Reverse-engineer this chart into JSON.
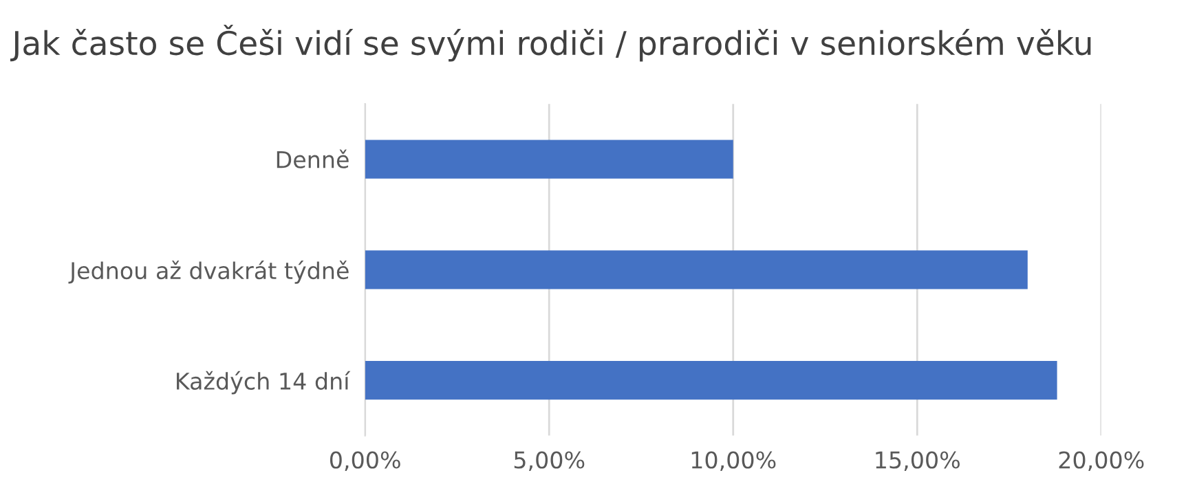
{
  "chart_data": {
    "type": "bar",
    "orientation": "horizontal",
    "title": "Jak často se Češi vidí se svými rodiči / prarodiči v seniorském věku",
    "categories": [
      "Denně",
      "Jednou až dvakrát týdně",
      "Každých 14 dní"
    ],
    "values": [
      10,
      18,
      18.8
    ],
    "color": "#4472c4",
    "xlim": [
      0,
      20
    ],
    "xticks": [
      {
        "value": 0,
        "label": "0,00%"
      },
      {
        "value": 5,
        "label": "5,00%"
      },
      {
        "value": 10,
        "label": "10,00%"
      },
      {
        "value": 15,
        "label": "15,00%"
      },
      {
        "value": 20,
        "label": "20,00%"
      }
    ],
    "grid": "x"
  }
}
